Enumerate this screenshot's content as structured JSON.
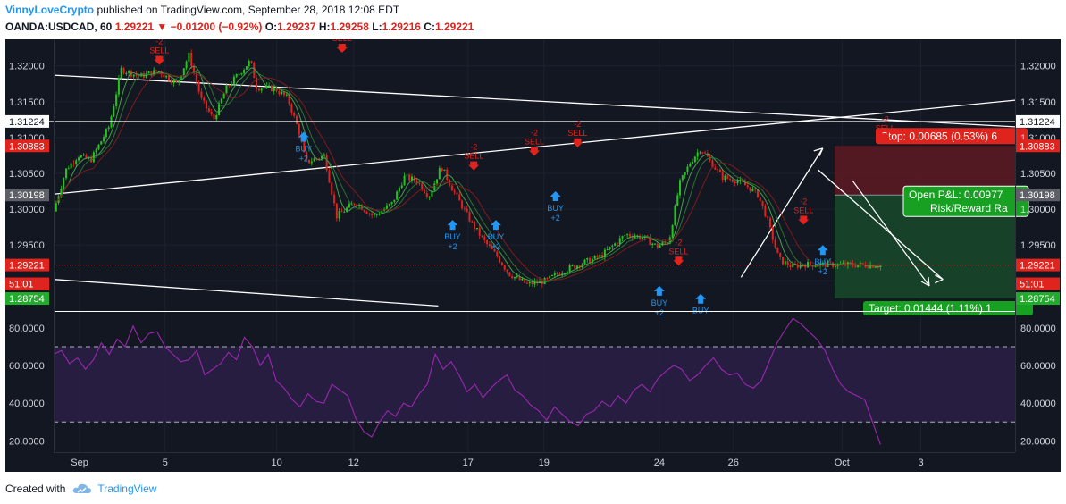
{
  "header": {
    "author": "VinnyLoveCrypto",
    "published": "published on TradingView.com, September 28, 2018 12:08 EDT",
    "symbol": "OANDA:USDCAD, 60",
    "last": "1.29221",
    "change": "−0.01200 (−0.92%)",
    "o_label": "O:",
    "o_value": "1.29237",
    "h_label": "H:",
    "h_value": "1.29258",
    "l_label": "L:",
    "l_value": "1.29216",
    "c_label": "C:",
    "c_value": "1.29221"
  },
  "footer": {
    "created_with": "Created with",
    "brand": "TradingView"
  },
  "colors": {
    "bg": "#131722",
    "grid": "#1c2130",
    "up": "#22c71a",
    "down": "#e0231c",
    "rsi": "#9c27b0",
    "buy": "#2196f3",
    "sell": "#e0231c",
    "trend": "#ffffff"
  },
  "chart_data": [
    {
      "type": "candlestick",
      "symbol": "OANDA:USDCAD",
      "interval": "60",
      "y_ticks": [
        "1.32000",
        "1.31500",
        "1.31000",
        "1.30500",
        "1.30000",
        "1.29500",
        "1.29000"
      ],
      "ylim": [
        1.2858,
        1.3227
      ],
      "x_ticks": [
        "Sep",
        "5",
        "10",
        "12",
        "17",
        "19",
        "24",
        "26",
        "Oct",
        "3"
      ],
      "price_tags": [
        {
          "text": "1.31224",
          "value": 1.31224,
          "color": "#ffffff",
          "textColor": "#131722"
        },
        {
          "text": "1.30883",
          "value": 1.30883,
          "color": "#e0231c",
          "textColor": "#ffffff"
        },
        {
          "text": "1.30198",
          "value": 1.30198,
          "color": "#5d6067",
          "textColor": "#ffffff"
        },
        {
          "text": "1.29221",
          "value": 1.29221,
          "color": "#e0231c",
          "textColor": "#ffffff"
        },
        {
          "text": "51:01",
          "value": 1.2896,
          "color": "#e0231c",
          "textColor": "#ffffff"
        },
        {
          "text": "1.28754",
          "value": 1.28754,
          "color": "#22ab2c",
          "textColor": "#ffffff"
        }
      ],
      "right_price_tags": [
        "1.31224",
        "1.30883",
        "1.30198",
        "1.29221",
        "51:01",
        "1.28754"
      ],
      "close_path": [
        [
          0,
          1.2997
        ],
        [
          0.02,
          1.3055
        ],
        [
          0.04,
          1.3075
        ],
        [
          0.06,
          1.3068
        ],
        [
          0.09,
          1.3115
        ],
        [
          0.11,
          1.3195
        ],
        [
          0.14,
          1.3185
        ],
        [
          0.17,
          1.3193
        ],
        [
          0.2,
          1.3175
        ],
        [
          0.22,
          1.3215
        ],
        [
          0.24,
          1.3153
        ],
        [
          0.26,
          1.3125
        ],
        [
          0.28,
          1.3168
        ],
        [
          0.3,
          1.3188
        ],
        [
          0.32,
          1.3207
        ],
        [
          0.33,
          1.317
        ],
        [
          0.36,
          1.3168
        ],
        [
          0.38,
          1.3155
        ],
        [
          0.4,
          1.3105
        ],
        [
          0.41,
          1.3065
        ],
        [
          0.44,
          1.3075
        ],
        [
          0.46,
          1.299
        ],
        [
          0.49,
          1.301
        ],
        [
          0.52,
          1.299
        ],
        [
          0.55,
          1.3008
        ],
        [
          0.57,
          1.3045
        ],
        [
          0.59,
          1.304
        ],
        [
          0.61,
          1.3018
        ],
        [
          0.63,
          1.306
        ],
        [
          0.65,
          1.3025
        ],
        [
          0.68,
          1.298
        ],
        [
          0.7,
          1.2955
        ],
        [
          0.72,
          1.2935
        ],
        [
          0.74,
          1.291
        ],
        [
          0.77,
          1.2895
        ],
        [
          0.8,
          1.29
        ],
        [
          0.83,
          1.2915
        ],
        [
          0.86,
          1.2925
        ],
        [
          0.89,
          1.2935
        ],
        [
          0.91,
          1.295
        ],
        [
          0.93,
          1.2965
        ],
        [
          0.96,
          1.296
        ],
        [
          0.98,
          1.2948
        ],
        [
          1.0,
          1.2955
        ]
      ],
      "close_path_2": [
        [
          0,
          1.2955
        ],
        [
          0.05,
          1.3035
        ],
        [
          0.1,
          1.3065
        ],
        [
          0.15,
          1.3085
        ],
        [
          0.2,
          1.3065
        ],
        [
          0.25,
          1.3045
        ],
        [
          0.32,
          1.304
        ],
        [
          0.38,
          1.303
        ],
        [
          0.42,
          1.302
        ],
        [
          0.46,
          1.299
        ],
        [
          0.52,
          1.293
        ],
        [
          0.58,
          1.292
        ],
        [
          0.64,
          1.2923
        ],
        [
          1.0,
          1.2922
        ]
      ],
      "signals": [
        {
          "kind": "sell",
          "label": "SELL",
          "count": "-2",
          "time": 0.11,
          "price": 1.3205
        },
        {
          "kind": "sell",
          "label": "SELL",
          "count": "-2",
          "time": 0.3,
          "price": 1.3222
        },
        {
          "kind": "buy",
          "label": "BUY",
          "count": "+2",
          "time": 0.26,
          "price": 1.3108
        },
        {
          "kind": "buy",
          "label": "BUY",
          "count": "+2",
          "time": 0.415,
          "price": 1.2985
        },
        {
          "kind": "buy",
          "label": "BUY",
          "count": "+2",
          "time": 0.46,
          "price": 1.2985
        },
        {
          "kind": "sell",
          "label": "SELL",
          "count": "-2",
          "time": 0.437,
          "price": 1.3058
        },
        {
          "kind": "sell",
          "label": "SELL",
          "count": "-2",
          "time": 0.5,
          "price": 1.3078
        },
        {
          "kind": "sell",
          "label": "SELL",
          "count": "-2",
          "time": 0.545,
          "price": 1.309
        },
        {
          "kind": "buy",
          "label": "BUY",
          "count": "+2",
          "time": 0.522,
          "price": 1.3025
        },
        {
          "kind": "sell",
          "label": "SELL",
          "count": "-2",
          "time": 0.65,
          "price": 1.2925
        },
        {
          "kind": "buy",
          "label": "BUY",
          "count": "+2",
          "time": 0.63,
          "price": 1.2893
        },
        {
          "kind": "buy",
          "label": "BUY",
          "count": "",
          "time": 0.673,
          "price": 1.2882
        },
        {
          "kind": "sell",
          "label": "SELL",
          "count": "-2",
          "time": 0.78,
          "price": 1.2982
        },
        {
          "kind": "buy",
          "label": "BUY",
          "count": "+2",
          "time": 0.8,
          "price": 1.295
        },
        {
          "kind": "sell",
          "label": "SELL",
          "count": "-2",
          "time": 0.865,
          "price": 1.3097
        }
      ],
      "position": {
        "stop_label": "Stop: 0.00685 (0.53%) 6",
        "open_pl_label": "Open P&L: 0.00977",
        "risk_reward_label": "Risk/Reward Ra",
        "target_label": "Target: 0.01444 (1.11%) 1",
        "entry": 1.30198,
        "stop": 1.30883,
        "target": 1.28754
      },
      "trendlines": [
        {
          "from": [
            0.0,
            1.3187
          ],
          "to": [
            1.0,
            1.3115
          ]
        },
        {
          "from": [
            0.0,
            1.3021
          ],
          "to": [
            1.0,
            1.3152
          ]
        },
        {
          "from": [
            0.0,
            1.2902
          ],
          "to": [
            0.4,
            1.2865
          ]
        },
        {
          "from": [
            0.715,
            1.2905
          ],
          "to": [
            0.8,
            1.3085
          ]
        },
        {
          "from": [
            0.795,
            1.3055
          ],
          "to": [
            0.925,
            1.2902
          ]
        }
      ]
    },
    {
      "type": "line",
      "name": "RSI",
      "y_ticks": [
        "80.0000",
        "60.0000",
        "40.0000",
        "20.0000"
      ],
      "ylim": [
        14,
        88
      ],
      "bands": [
        30,
        70
      ],
      "values": [
        66,
        68,
        61,
        64,
        58,
        63,
        72,
        66,
        74,
        70,
        81,
        72,
        77,
        78,
        70,
        66,
        62,
        63,
        68,
        55,
        58,
        61,
        67,
        63,
        75,
        70,
        60,
        66,
        52,
        48,
        42,
        38,
        45,
        41,
        40,
        50,
        47,
        44,
        32,
        25,
        22,
        30,
        36,
        33,
        40,
        38,
        45,
        50,
        66,
        58,
        62,
        55,
        46,
        50,
        43,
        48,
        52,
        55,
        47,
        44,
        39,
        36,
        31,
        38,
        34,
        30,
        28,
        34,
        36,
        41,
        38,
        44,
        40,
        47,
        50,
        46,
        53,
        57,
        60,
        58,
        52,
        55,
        60,
        64,
        58,
        55,
        56,
        50,
        48,
        52,
        62,
        72,
        79,
        85,
        82,
        78,
        74,
        68,
        58,
        50,
        46,
        44,
        42,
        30,
        18
      ]
    }
  ]
}
